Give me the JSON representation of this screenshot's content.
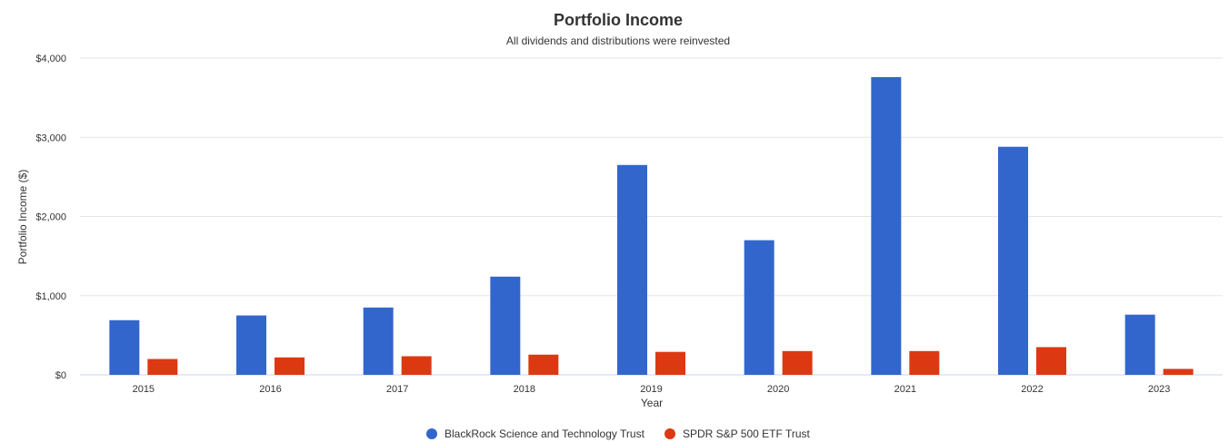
{
  "colors": {
    "series_1": "#3366cc",
    "series_2": "#dc3912"
  },
  "chart_data": {
    "type": "bar",
    "title": "Portfolio Income",
    "subtitle": "All dividends and distributions were reinvested",
    "xlabel": "Year",
    "ylabel": "Portfolio Income ($)",
    "ylim": [
      0,
      4000
    ],
    "yticks": [
      0,
      1000,
      2000,
      3000,
      4000
    ],
    "ytick_labels": [
      "$0",
      "$1,000",
      "$2,000",
      "$3,000",
      "$4,000"
    ],
    "categories": [
      "2015",
      "2016",
      "2017",
      "2018",
      "2019",
      "2020",
      "2021",
      "2022",
      "2023"
    ],
    "series": [
      {
        "name": "BlackRock Science and Technology Trust",
        "color": "#3366cc",
        "values": [
          690,
          750,
          850,
          1240,
          2650,
          1700,
          3760,
          2880,
          760
        ]
      },
      {
        "name": "SPDR S&P 500 ETF Trust",
        "color": "#dc3912",
        "values": [
          200,
          220,
          235,
          255,
          290,
          300,
          300,
          350,
          75
        ]
      }
    ],
    "grid": true,
    "legend_position": "bottom-center"
  }
}
